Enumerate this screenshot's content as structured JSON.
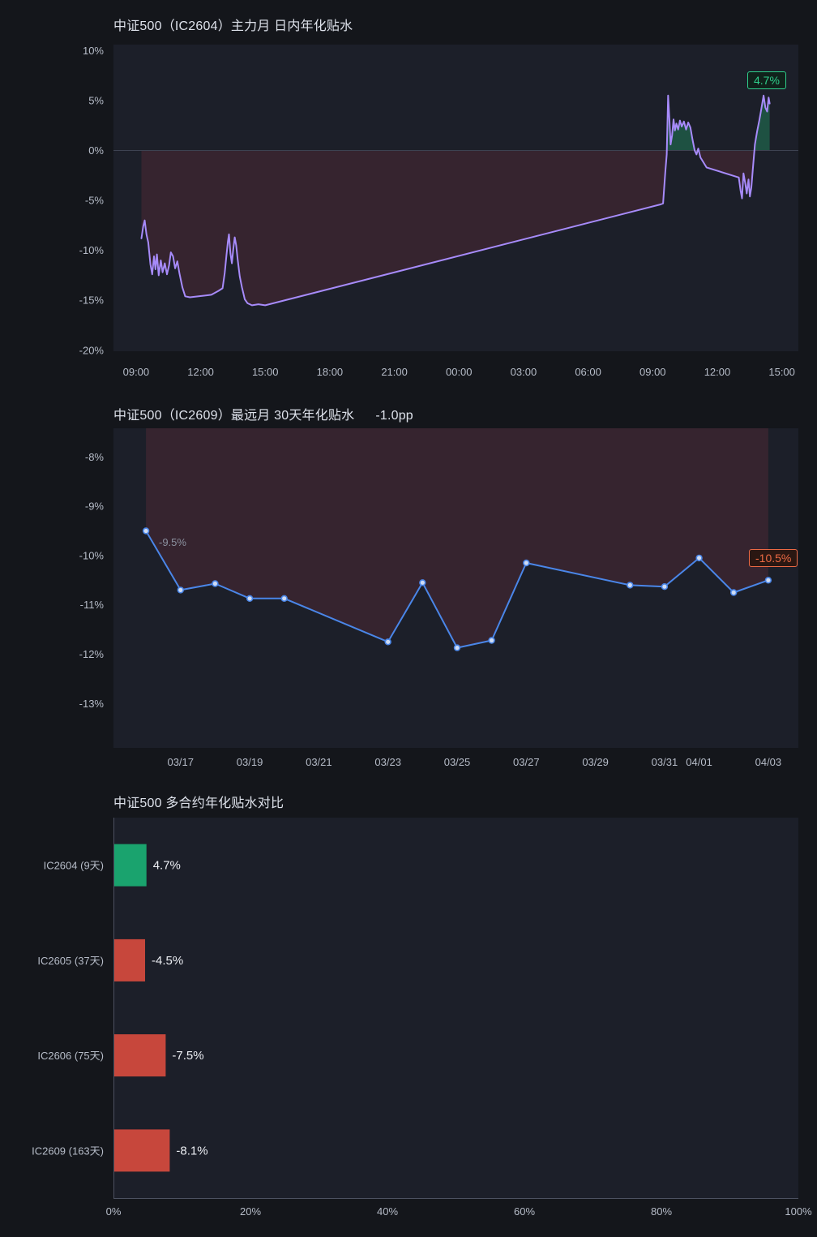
{
  "app": {
    "background": "#14161b",
    "panel_bg": "#1c1f29",
    "text_muted": "#b6bcc8",
    "axis_line": "#4c5160"
  },
  "charts": {
    "intraday": {
      "title": "中证500（IC2604）主力月 日内年化贴水",
      "end_badge": "4.7%"
    },
    "far_month": {
      "title": "中证500（IC2609）最远月 30天年化贴水",
      "delta_label": "-1.0pp",
      "first_point_label": "-9.5%",
      "end_badge": "-10.5%"
    },
    "compare": {
      "title": "中证500 多合约年化贴水对比"
    }
  },
  "chart_data": [
    {
      "id": "intraday-annualized-basis",
      "type": "area",
      "title": "中证500（IC2604）主力月 日内年化贴水",
      "y_ticks": [
        10,
        5,
        0,
        -5,
        -10,
        -15,
        -20
      ],
      "y_tick_labels": [
        "10%",
        "5%",
        "0%",
        "-5%",
        "-10%",
        "-15%",
        "-20%"
      ],
      "ylim": [
        -20.1,
        10.6
      ],
      "x_tick_minutes": [
        0,
        180,
        360,
        540,
        720,
        900,
        1080,
        1260,
        1440,
        1620,
        1800
      ],
      "x_tick_labels": [
        "09:00",
        "12:00",
        "15:00",
        "18:00",
        "21:00",
        "00:00",
        "03:00",
        "06:00",
        "09:00",
        "12:00",
        "15:00"
      ],
      "xlim_minutes": [
        -63,
        1846
      ],
      "last_value": 4.7,
      "colors": {
        "line": "#a78bfa",
        "neg_fill": "rgba(216,70,88,0.14)",
        "pos_fill": "rgba(35,176,115,0.35)",
        "zero_line": "#3d4251",
        "badge": "#2fce8b"
      },
      "points_min_value": [
        [
          15,
          -8.8
        ],
        [
          20,
          -7.6
        ],
        [
          24,
          -7.0
        ],
        [
          29,
          -8.4
        ],
        [
          34,
          -9.2
        ],
        [
          40,
          -11.4
        ],
        [
          45,
          -12.4
        ],
        [
          50,
          -10.6
        ],
        [
          54,
          -11.9
        ],
        [
          58,
          -10.4
        ],
        [
          63,
          -12.5
        ],
        [
          69,
          -11.0
        ],
        [
          74,
          -12.2
        ],
        [
          80,
          -11.3
        ],
        [
          86,
          -12.4
        ],
        [
          92,
          -11.5
        ],
        [
          97,
          -10.2
        ],
        [
          103,
          -10.6
        ],
        [
          109,
          -11.8
        ],
        [
          115,
          -11.1
        ],
        [
          121,
          -12.3
        ],
        [
          129,
          -13.7
        ],
        [
          137,
          -14.6
        ],
        [
          150,
          -14.7
        ],
        [
          210,
          -14.45
        ],
        [
          230,
          -14.05
        ],
        [
          241,
          -13.8
        ],
        [
          247,
          -12.3
        ],
        [
          252,
          -10.5
        ],
        [
          256,
          -9.1
        ],
        [
          259,
          -8.4
        ],
        [
          263,
          -10.3
        ],
        [
          267,
          -11.3
        ],
        [
          271,
          -9.9
        ],
        [
          275,
          -8.7
        ],
        [
          279,
          -9.5
        ],
        [
          283,
          -10.9
        ],
        [
          289,
          -12.6
        ],
        [
          295,
          -13.7
        ],
        [
          303,
          -14.9
        ],
        [
          311,
          -15.3
        ],
        [
          323,
          -15.5
        ],
        [
          341,
          -15.4
        ],
        [
          360,
          -15.5
        ],
        [
          1462,
          -5.4
        ],
        [
          1469,
          -5.3
        ],
        [
          1475,
          -2.2
        ],
        [
          1479,
          -0.4
        ],
        [
          1483,
          5.5
        ],
        [
          1487,
          2.8
        ],
        [
          1490,
          0.6
        ],
        [
          1494,
          1.5
        ],
        [
          1498,
          3.1
        ],
        [
          1502,
          2.0
        ],
        [
          1506,
          2.7
        ],
        [
          1511,
          2.1
        ],
        [
          1516,
          3.0
        ],
        [
          1521,
          2.4
        ],
        [
          1527,
          2.9
        ],
        [
          1533,
          2.1
        ],
        [
          1539,
          2.8
        ],
        [
          1545,
          2.3
        ],
        [
          1551,
          1.1
        ],
        [
          1557,
          0.0
        ],
        [
          1562,
          -0.4
        ],
        [
          1567,
          0.2
        ],
        [
          1573,
          -0.7
        ],
        [
          1590,
          -1.7
        ],
        [
          1680,
          -2.7
        ],
        [
          1685,
          -4.0
        ],
        [
          1689,
          -4.8
        ],
        [
          1693,
          -2.3
        ],
        [
          1698,
          -3.3
        ],
        [
          1702,
          -4.3
        ],
        [
          1707,
          -2.9
        ],
        [
          1711,
          -4.6
        ],
        [
          1715,
          -3.7
        ],
        [
          1719,
          -1.9
        ],
        [
          1725,
          0.6
        ],
        [
          1731,
          1.9
        ],
        [
          1737,
          3.0
        ],
        [
          1743,
          4.2
        ],
        [
          1749,
          5.5
        ],
        [
          1754,
          4.3
        ],
        [
          1759,
          3.9
        ],
        [
          1763,
          5.3
        ],
        [
          1766,
          4.7
        ]
      ]
    },
    {
      "id": "far-month-30d-annualized-basis",
      "type": "line",
      "title": "中证500（IC2609）最远月 30天年化贴水",
      "delta": "-1.0pp",
      "y_ticks": [
        -8,
        -9,
        -10,
        -11,
        -12,
        -13
      ],
      "y_tick_labels": [
        "-8%",
        "-9%",
        "-10%",
        "-11%",
        "-12%",
        "-13%"
      ],
      "ylim": [
        -13.9,
        -7.42
      ],
      "x_tick_days": [
        1,
        3,
        5,
        7,
        9,
        11,
        13,
        15,
        16,
        18
      ],
      "x_tick_labels": [
        "03/17",
        "03/19",
        "03/21",
        "03/23",
        "03/25",
        "03/27",
        "03/29",
        "03/31",
        "04/01",
        "04/03"
      ],
      "xlim_days": [
        -0.94,
        18.87
      ],
      "first_value": -9.5,
      "last_value": -10.5,
      "colors": {
        "line": "#4a86e8",
        "dot_fill": "#cfdcf4",
        "fill": "rgba(216,70,88,0.14)",
        "badge": "#ec6a44"
      },
      "point_dates": [
        "03/16",
        "03/17",
        "03/18",
        "03/19",
        "03/20",
        "03/23",
        "03/24",
        "03/25",
        "03/26",
        "03/27",
        "03/30",
        "03/31",
        "04/01",
        "04/02",
        "04/03"
      ],
      "points_day_value": [
        [
          0,
          -9.5
        ],
        [
          1,
          -10.7
        ],
        [
          2,
          -10.57
        ],
        [
          3,
          -10.87
        ],
        [
          4,
          -10.87
        ],
        [
          7,
          -11.75
        ],
        [
          8,
          -10.55
        ],
        [
          9,
          -11.87
        ],
        [
          10,
          -11.72
        ],
        [
          11,
          -10.15
        ],
        [
          14,
          -10.6
        ],
        [
          15,
          -10.63
        ],
        [
          16,
          -10.05
        ],
        [
          17,
          -10.75
        ],
        [
          18,
          -10.5
        ]
      ]
    },
    {
      "id": "multi-contract-basis-compare",
      "type": "bar",
      "orientation": "horizontal",
      "title": "中证500 多合约年化贴水对比",
      "categories": [
        "IC2604 (9天)",
        "IC2605 (37天)",
        "IC2606 (75天)",
        "IC2609 (163天)"
      ],
      "values": [
        4.7,
        -4.5,
        -7.5,
        -8.1
      ],
      "value_labels": [
        "4.7%",
        "-4.5%",
        "-7.5%",
        "-8.1%"
      ],
      "bar_colors": [
        "#1aa36e",
        "#c7473c",
        "#c7473c",
        "#c7473c"
      ],
      "x_ticks": [
        0,
        20,
        40,
        60,
        80,
        100
      ],
      "x_tick_labels": [
        "0%",
        "20%",
        "40%",
        "60%",
        "80%",
        "100%"
      ],
      "xlim": [
        0,
        100
      ]
    }
  ]
}
